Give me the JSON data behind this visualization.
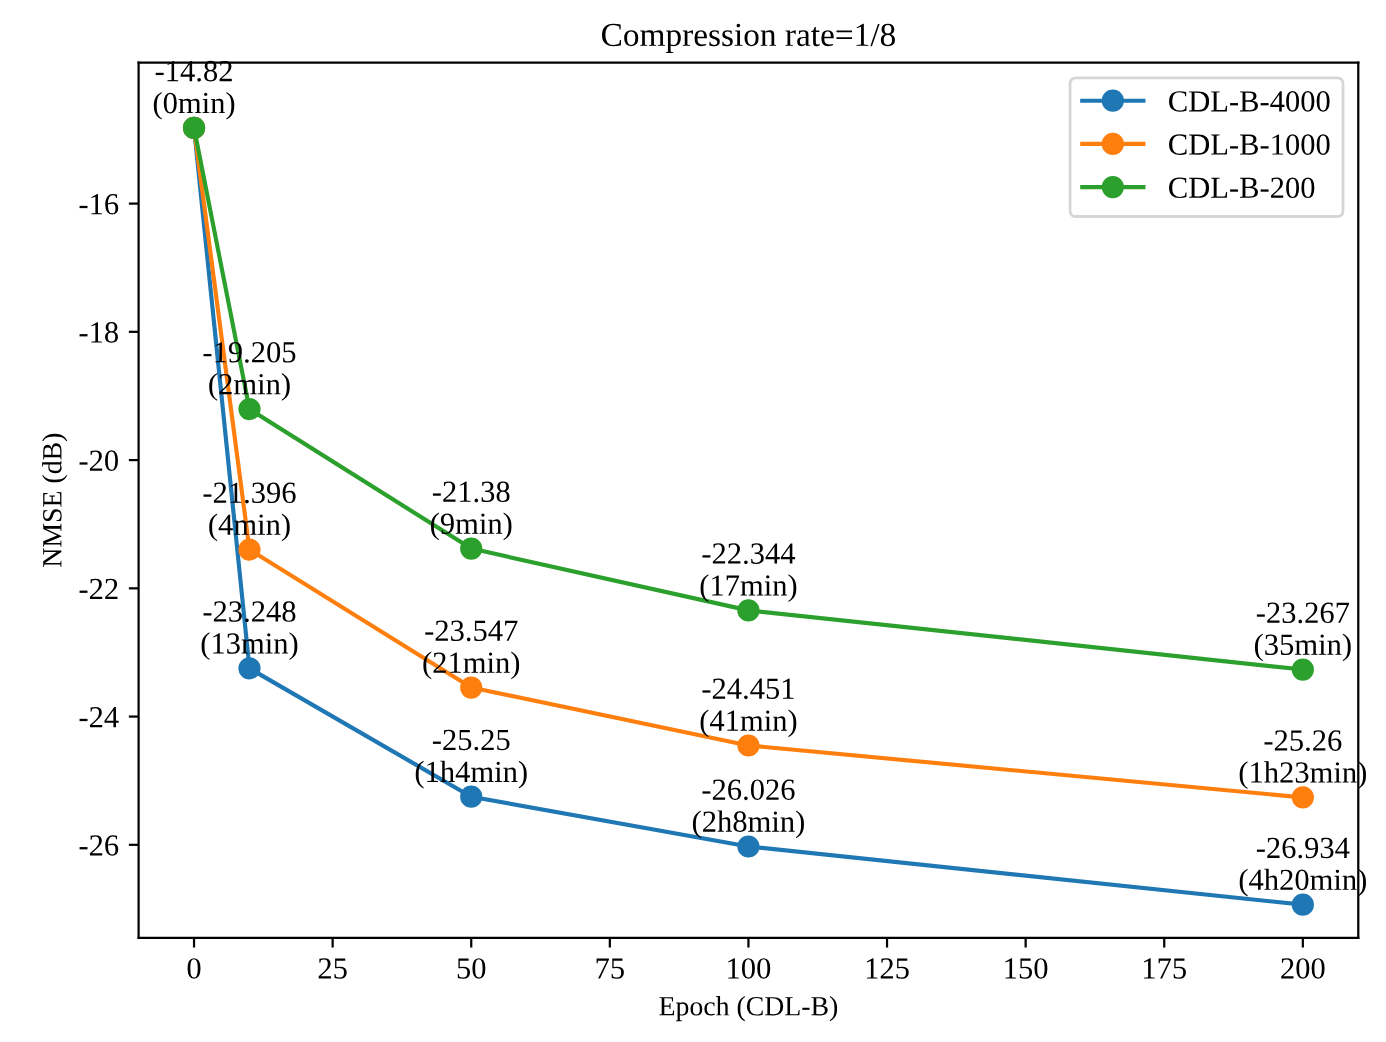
{
  "chart_data": {
    "type": "line",
    "title": "Compression rate=1/8",
    "xlabel": "Epoch (CDL-B)",
    "ylabel": "NMSE (dB)",
    "x": [
      0,
      10,
      50,
      100,
      200
    ],
    "series": [
      {
        "name": "CDL-B-4000",
        "color": "#1f77b4",
        "values": [
          -14.82,
          -23.248,
          -25.25,
          -26.026,
          -26.934
        ]
      },
      {
        "name": "CDL-B-1000",
        "color": "#ff7f0e",
        "values": [
          -14.82,
          -21.396,
          -23.547,
          -24.451,
          -25.26
        ]
      },
      {
        "name": "CDL-B-200",
        "color": "#2ca02c",
        "values": [
          -14.82,
          -19.205,
          -21.38,
          -22.344,
          -23.267
        ]
      }
    ],
    "annotations": [
      {
        "text": "-14.82\n(0min)",
        "x": 0,
        "y": -14.82
      },
      {
        "text": "-23.248\n(13min)",
        "x": 10,
        "y": -23.248
      },
      {
        "text": "-25.25\n(1h4min)",
        "x": 50,
        "y": -25.25
      },
      {
        "text": "-26.026\n(2h8min)",
        "x": 100,
        "y": -26.026
      },
      {
        "text": "-26.934\n(4h20min)",
        "x": 200,
        "y": -26.934
      },
      {
        "text": "-21.396\n(4min)",
        "x": 10,
        "y": -21.396
      },
      {
        "text": "-23.547\n(21min)",
        "x": 50,
        "y": -23.547
      },
      {
        "text": "-24.451\n(41min)",
        "x": 100,
        "y": -24.451
      },
      {
        "text": "-25.26\n(1h23min)",
        "x": 200,
        "y": -25.26
      },
      {
        "text": "-19.205\n(2min)",
        "x": 10,
        "y": -19.205
      },
      {
        "text": "-21.38\n(9min)",
        "x": 50,
        "y": -21.38
      },
      {
        "text": "-22.344\n(17min)",
        "x": 100,
        "y": -22.344
      },
      {
        "text": "-23.267\n(35min)",
        "x": 200,
        "y": -23.267
      }
    ],
    "xlim": [
      -10,
      210
    ],
    "ylim": [
      -27.45,
      -13.8
    ],
    "xticks": [
      0,
      25,
      50,
      75,
      100,
      125,
      150,
      175,
      200
    ],
    "yticks": [
      -26,
      -24,
      -22,
      -20,
      -18,
      -16
    ],
    "legend": "top right",
    "marker": "circle",
    "line_style": "solid",
    "grid": false
  }
}
